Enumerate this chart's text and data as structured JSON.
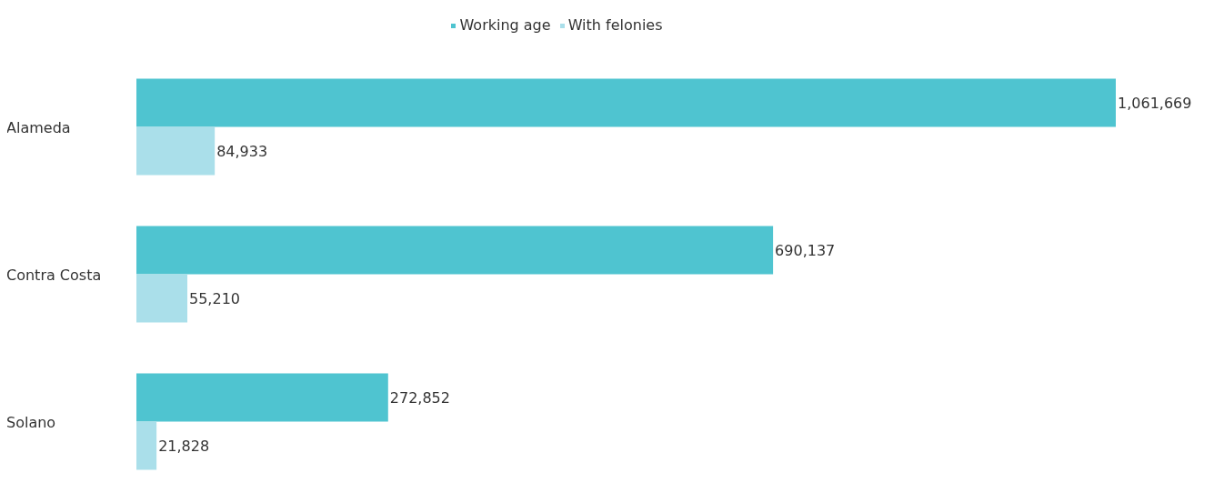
{
  "chart_data": {
    "type": "bar",
    "orientation": "horizontal",
    "categories": [
      "Alameda",
      "Contra Costa",
      "Solano"
    ],
    "series": [
      {
        "name": "Working age",
        "color": "#4fc4d0",
        "values": [
          1061669,
          690137,
          272852
        ],
        "value_labels": [
          "1,061,669",
          "690,137",
          "272,852"
        ]
      },
      {
        "name": "With felonies",
        "color": "#aadfea",
        "values": [
          84933,
          55210,
          21828
        ],
        "value_labels": [
          "84,933",
          "55,210",
          "21,828"
        ]
      }
    ],
    "legend": "top",
    "grid": false
  }
}
